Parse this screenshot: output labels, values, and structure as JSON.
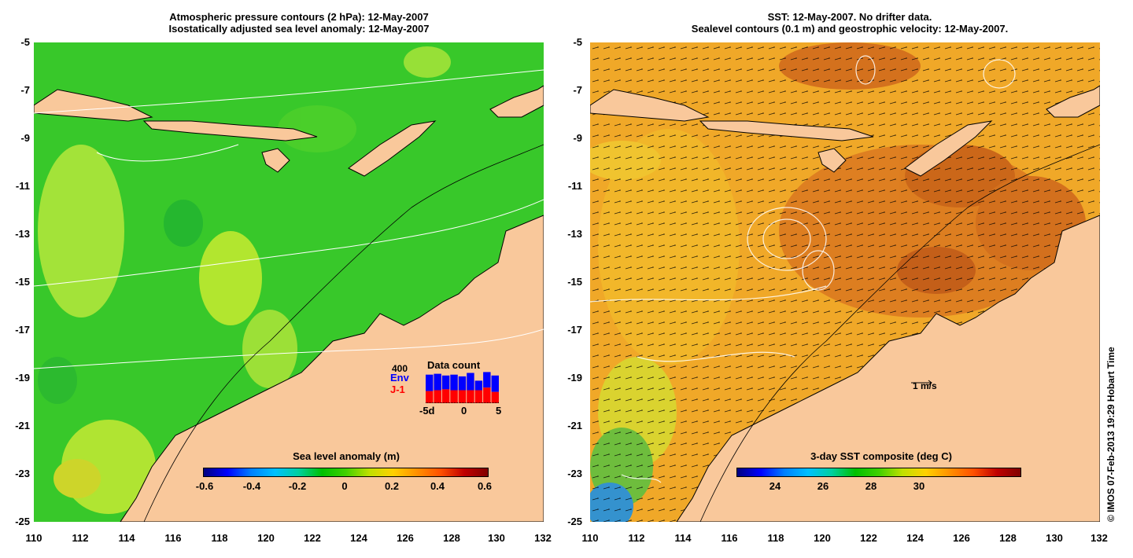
{
  "left_panel": {
    "title_line1": "Atmospheric pressure contours (2 hPa): 12-May-2007",
    "title_line2": "Isostatically adjusted sea level anomaly: 12-May-2007",
    "colorbar": {
      "title": "Sea level anomaly (m)",
      "ticks": [
        "-0.6",
        "-0.4",
        "-0.2",
        "0",
        "0.2",
        "0.4",
        "0.6"
      ]
    },
    "inset": {
      "title": "Data count",
      "max_label": "400",
      "series": [
        {
          "name": "Env",
          "color": "#0000ff"
        },
        {
          "name": "J-1",
          "color": "#ff0000"
        }
      ],
      "x_ticks": [
        "-5d",
        "0",
        "5"
      ],
      "env_counts": [
        330,
        340,
        320,
        330,
        310,
        350,
        260,
        360,
        320
      ],
      "j1_counts": [
        140,
        150,
        160,
        150,
        150,
        150,
        150,
        180,
        130
      ]
    }
  },
  "right_panel": {
    "title_line1": "SST: 12-May-2007. No drifter data.",
    "title_line2": "Sealevel contours (0.1 m) and geostrophic velocity: 12-May-2007.",
    "colorbar": {
      "title": "3-day SST composite (deg C)",
      "ticks": [
        "24",
        "26",
        "28",
        "30"
      ]
    },
    "velocity_scale": "1 m/s"
  },
  "axes": {
    "y_ticks": [
      "-5",
      "-7",
      "-9",
      "-11",
      "-13",
      "-15",
      "-17",
      "-19",
      "-21",
      "-23",
      "-25"
    ],
    "x_ticks": [
      "110",
      "112",
      "114",
      "116",
      "118",
      "120",
      "122",
      "124",
      "126",
      "128",
      "130",
      "132"
    ]
  },
  "colors": {
    "land": "#f9c89b",
    "coast": "#000000",
    "sla_base": "#33cc22",
    "sst_base": "#f0a020"
  },
  "copyright": "© IMOS 07-Feb-2013 19:29 Hobart Time"
}
